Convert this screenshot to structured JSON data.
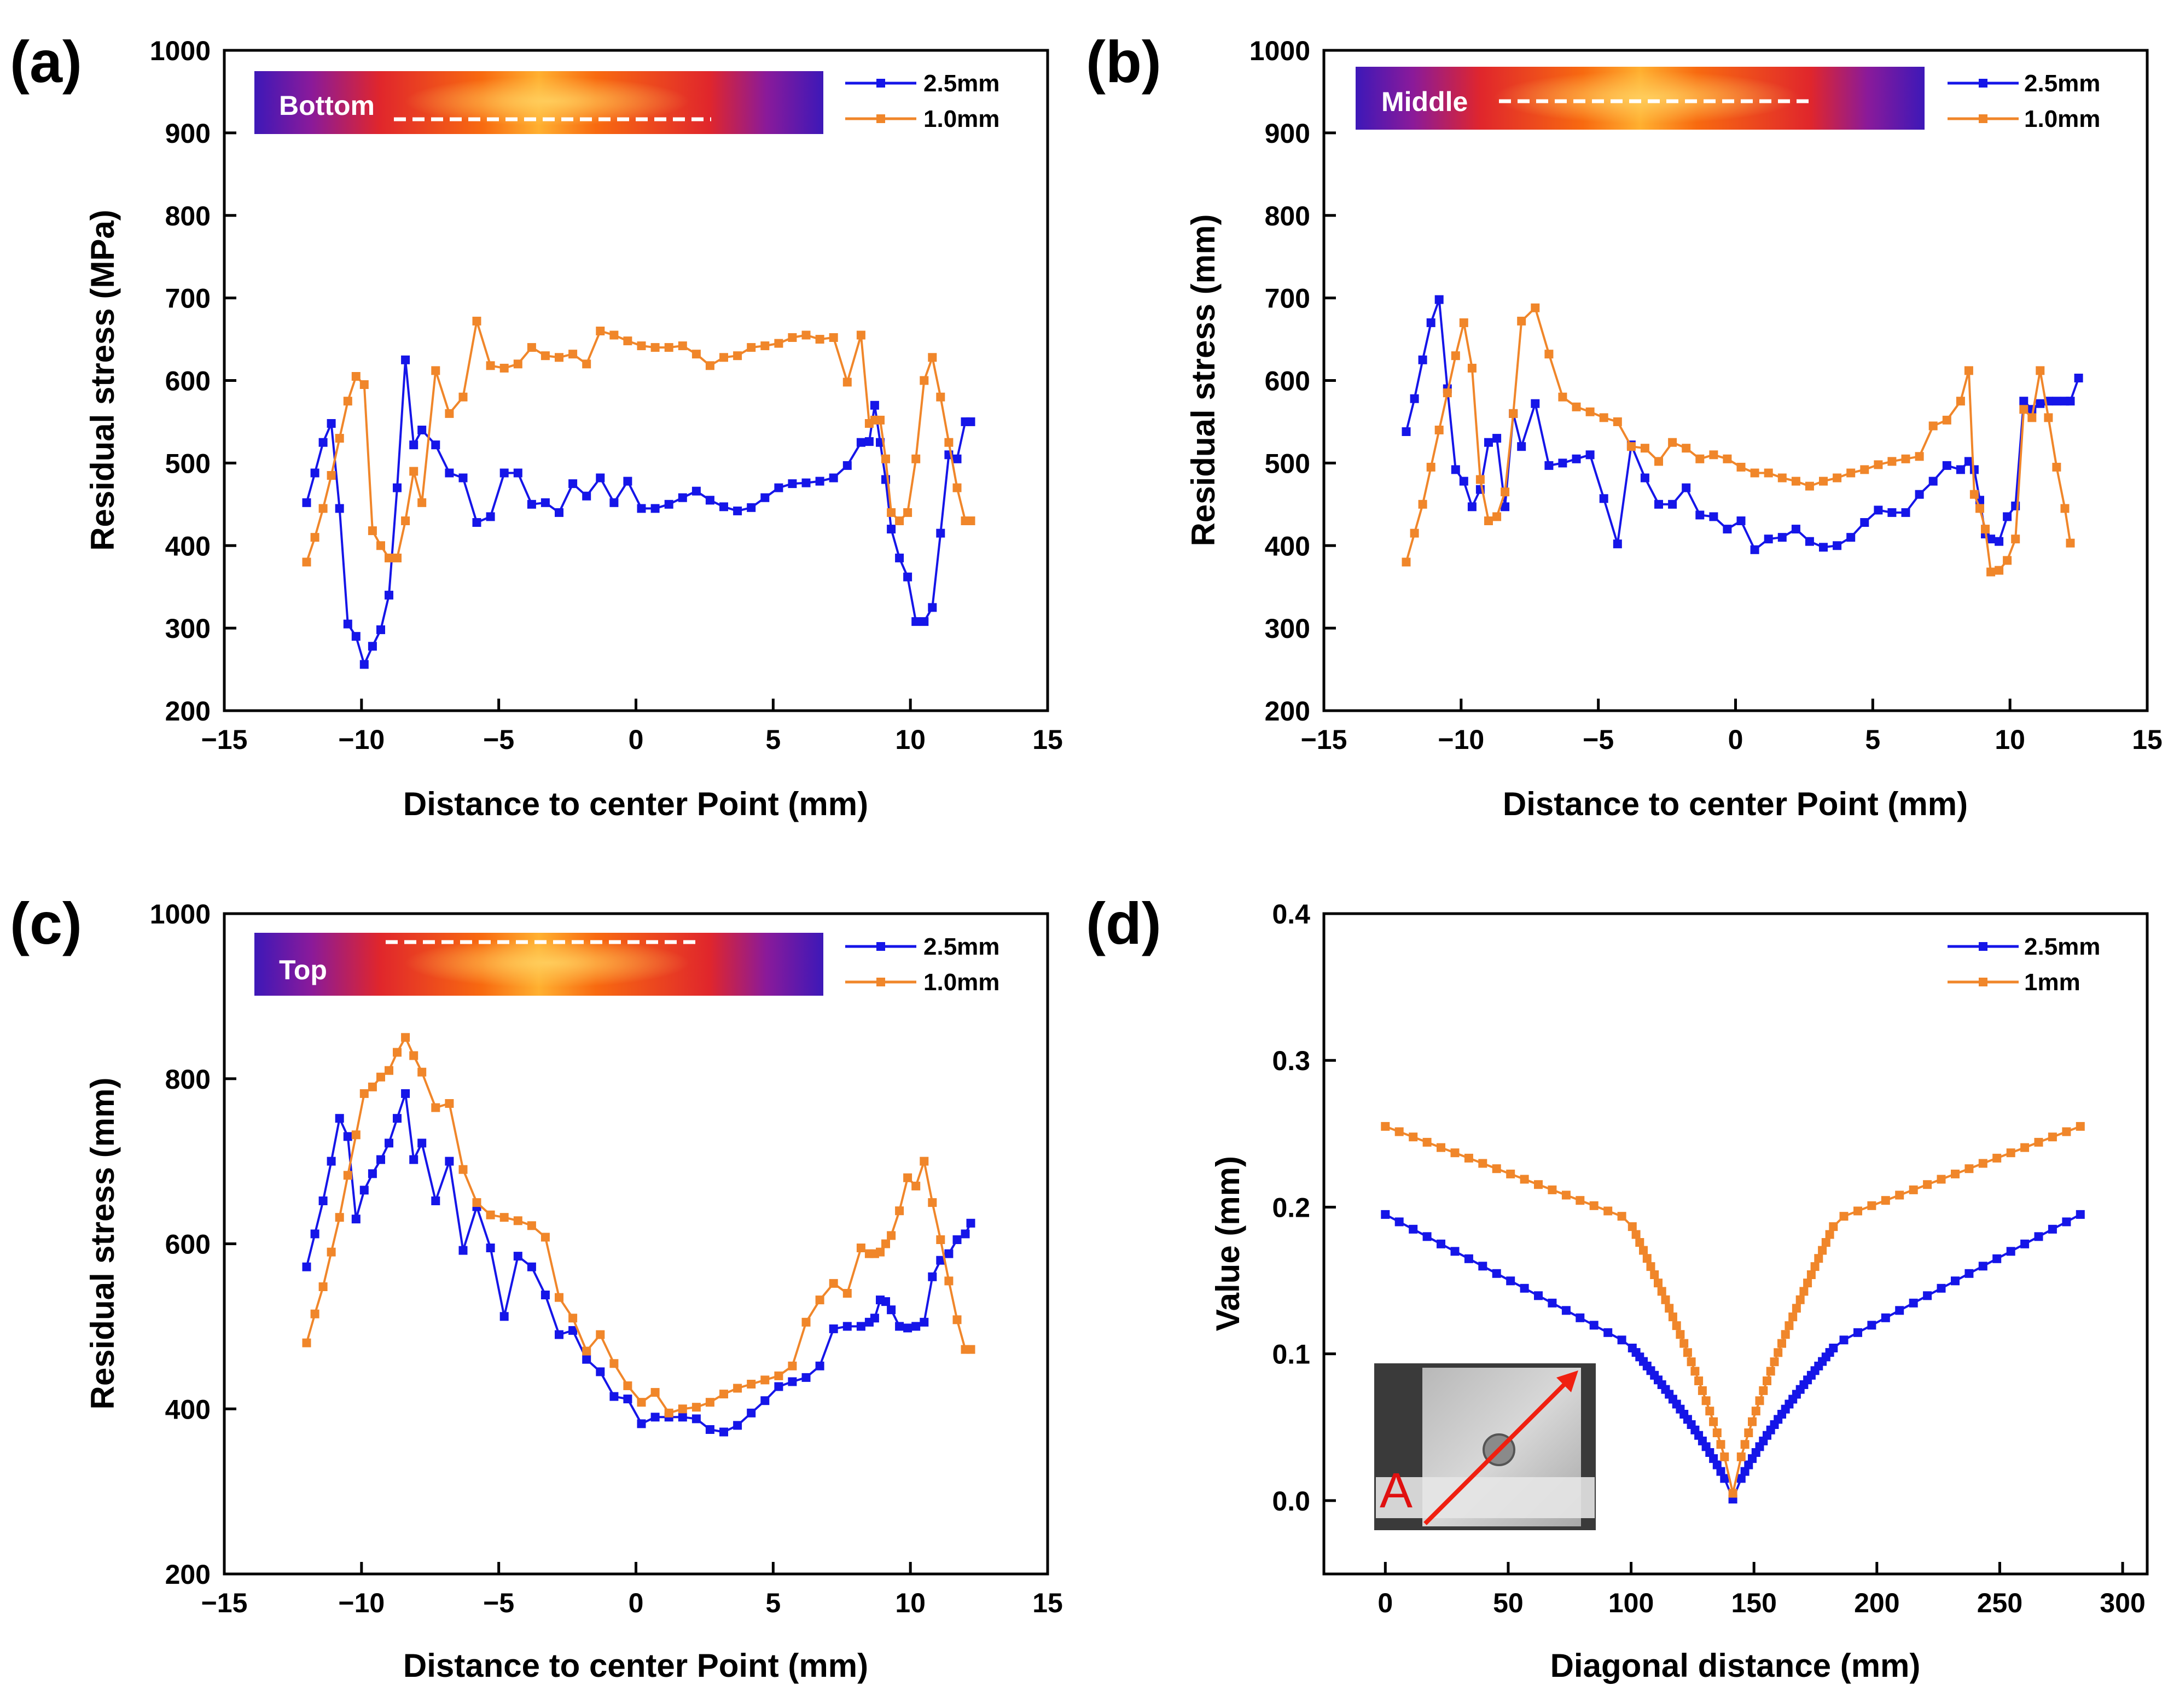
{
  "colors": {
    "series_blue": "#1515e8",
    "series_orange": "#f0862a"
  },
  "chart_data": [
    {
      "id": "a",
      "panel_label": "(a)",
      "type": "line",
      "xlabel": "Distance to center Point (mm)",
      "ylabel": "Residual stress (MPa)",
      "xlim": [
        -15,
        15
      ],
      "ylim": [
        200,
        1000
      ],
      "xticks": [
        -15,
        -10,
        -5,
        0,
        5,
        10,
        15
      ],
      "xtick_labels": [
        "−15",
        "−10",
        "−5",
        "0",
        "5",
        "10",
        "15"
      ],
      "yticks": [
        200,
        300,
        400,
        500,
        600,
        700,
        800,
        900,
        1000
      ],
      "ytick_labels": [
        "200",
        "300",
        "400",
        "500",
        "600",
        "700",
        "800",
        "900",
        "1000"
      ],
      "legend_position": "top-right",
      "grid": false,
      "inset_label": "Bottom",
      "series": [
        {
          "name": "2.5mm",
          "x": [
            -12.0,
            -11.7,
            -11.4,
            -11.1,
            -10.8,
            -10.5,
            -10.2,
            -9.9,
            -9.6,
            -9.3,
            -9.0,
            -8.7,
            -8.4,
            -8.1,
            -7.8,
            -7.3,
            -6.8,
            -6.3,
            -5.8,
            -5.3,
            -4.8,
            -4.3,
            -3.8,
            -3.3,
            -2.8,
            -2.3,
            -1.8,
            -1.3,
            -0.8,
            -0.3,
            0.2,
            0.7,
            1.2,
            1.7,
            2.2,
            2.7,
            3.2,
            3.7,
            4.2,
            4.7,
            5.2,
            5.7,
            6.2,
            6.7,
            7.2,
            7.7,
            8.2,
            8.5,
            8.7,
            8.9,
            9.1,
            9.3,
            9.6,
            9.9,
            10.2,
            10.5,
            10.8,
            11.1,
            11.4,
            11.7,
            12.0,
            12.2
          ],
          "y": [
            452,
            488,
            525,
            548,
            445,
            305,
            290,
            256,
            278,
            298,
            340,
            470,
            625,
            522,
            540,
            522,
            488,
            482,
            428,
            435,
            488,
            488,
            450,
            452,
            440,
            475,
            460,
            482,
            452,
            478,
            445,
            445,
            450,
            458,
            466,
            455,
            447,
            442,
            446,
            458,
            470,
            475,
            476,
            478,
            482,
            497,
            525,
            526,
            570,
            525,
            480,
            420,
            385,
            362,
            308,
            308,
            325,
            415,
            510,
            505,
            550,
            550
          ]
        },
        {
          "name": "1.0mm",
          "x": [
            -12.0,
            -11.7,
            -11.4,
            -11.1,
            -10.8,
            -10.5,
            -10.2,
            -9.9,
            -9.6,
            -9.3,
            -9.0,
            -8.7,
            -8.4,
            -8.1,
            -7.8,
            -7.3,
            -6.8,
            -6.3,
            -5.8,
            -5.3,
            -4.8,
            -4.3,
            -3.8,
            -3.3,
            -2.8,
            -2.3,
            -1.8,
            -1.3,
            -0.8,
            -0.3,
            0.2,
            0.7,
            1.2,
            1.7,
            2.2,
            2.7,
            3.2,
            3.7,
            4.2,
            4.7,
            5.2,
            5.7,
            6.2,
            6.7,
            7.2,
            7.7,
            8.2,
            8.5,
            8.7,
            8.9,
            9.1,
            9.3,
            9.6,
            9.9,
            10.2,
            10.5,
            10.8,
            11.1,
            11.4,
            11.7,
            12.0,
            12.2
          ],
          "y": [
            380,
            410,
            445,
            485,
            530,
            575,
            605,
            595,
            418,
            400,
            385,
            385,
            430,
            490,
            452,
            612,
            560,
            580,
            672,
            618,
            615,
            620,
            640,
            630,
            628,
            632,
            620,
            660,
            655,
            648,
            642,
            640,
            640,
            642,
            632,
            618,
            628,
            630,
            640,
            642,
            645,
            652,
            655,
            650,
            652,
            598,
            655,
            548,
            552,
            552,
            505,
            440,
            430,
            440,
            505,
            600,
            628,
            580,
            525,
            470,
            430,
            430
          ]
        }
      ]
    },
    {
      "id": "b",
      "panel_label": "(b)",
      "type": "line",
      "xlabel": "Distance to center Point (mm)",
      "ylabel": "Residual stress (mm)",
      "xlim": [
        -15,
        15
      ],
      "ylim": [
        200,
        1000
      ],
      "xticks": [
        -15,
        -10,
        -5,
        0,
        5,
        10,
        15
      ],
      "xtick_labels": [
        "−15",
        "−10",
        "−5",
        "0",
        "5",
        "10",
        "15"
      ],
      "yticks": [
        200,
        300,
        400,
        500,
        600,
        700,
        800,
        900,
        1000
      ],
      "ytick_labels": [
        "200",
        "300",
        "400",
        "500",
        "600",
        "700",
        "800",
        "900",
        "1000"
      ],
      "legend_position": "top-right",
      "grid": false,
      "inset_label": "Middle",
      "series": [
        {
          "name": "2.5mm",
          "x": [
            -12.0,
            -11.7,
            -11.4,
            -11.1,
            -10.8,
            -10.5,
            -10.2,
            -9.9,
            -9.6,
            -9.3,
            -9.0,
            -8.7,
            -8.4,
            -8.1,
            -7.8,
            -7.3,
            -6.8,
            -6.3,
            -5.8,
            -5.3,
            -4.8,
            -4.3,
            -3.8,
            -3.3,
            -2.8,
            -2.3,
            -1.8,
            -1.3,
            -0.8,
            -0.3,
            0.2,
            0.7,
            1.2,
            1.7,
            2.2,
            2.7,
            3.2,
            3.7,
            4.2,
            4.7,
            5.2,
            5.7,
            6.2,
            6.7,
            7.2,
            7.7,
            8.2,
            8.5,
            8.7,
            8.9,
            9.1,
            9.3,
            9.6,
            9.9,
            10.2,
            10.5,
            10.8,
            11.1,
            11.4,
            11.7,
            12.0,
            12.2,
            12.5
          ],
          "y": [
            538,
            578,
            625,
            670,
            698,
            590,
            492,
            478,
            447,
            468,
            525,
            530,
            447,
            560,
            520,
            572,
            497,
            500,
            505,
            510,
            457,
            402,
            522,
            482,
            450,
            450,
            470,
            437,
            435,
            420,
            430,
            395,
            408,
            410,
            420,
            405,
            398,
            400,
            410,
            428,
            443,
            440,
            440,
            462,
            478,
            497,
            492,
            502,
            492,
            455,
            414,
            408,
            405,
            435,
            448,
            575,
            565,
            572,
            575,
            575,
            575,
            575,
            603
          ]
        },
        {
          "name": "1.0mm",
          "x": [
            -12.0,
            -11.7,
            -11.4,
            -11.1,
            -10.8,
            -10.5,
            -10.2,
            -9.9,
            -9.6,
            -9.3,
            -9.0,
            -8.7,
            -8.4,
            -8.1,
            -7.8,
            -7.3,
            -6.8,
            -6.3,
            -5.8,
            -5.3,
            -4.8,
            -4.3,
            -3.8,
            -3.3,
            -2.8,
            -2.3,
            -1.8,
            -1.3,
            -0.8,
            -0.3,
            0.2,
            0.7,
            1.2,
            1.7,
            2.2,
            2.7,
            3.2,
            3.7,
            4.2,
            4.7,
            5.2,
            5.7,
            6.2,
            6.7,
            7.2,
            7.7,
            8.2,
            8.5,
            8.7,
            8.9,
            9.1,
            9.3,
            9.6,
            9.9,
            10.2,
            10.5,
            10.8,
            11.1,
            11.4,
            11.7,
            12.0,
            12.2
          ],
          "y": [
            380,
            415,
            450,
            495,
            540,
            585,
            630,
            670,
            615,
            480,
            430,
            435,
            465,
            560,
            672,
            688,
            632,
            580,
            568,
            562,
            555,
            550,
            520,
            518,
            502,
            525,
            518,
            505,
            510,
            505,
            495,
            488,
            488,
            482,
            478,
            472,
            478,
            482,
            488,
            492,
            498,
            502,
            505,
            508,
            545,
            552,
            575,
            612,
            462,
            445,
            420,
            368,
            370,
            382,
            408,
            565,
            555,
            612,
            555,
            495,
            445,
            403
          ]
        }
      ]
    },
    {
      "id": "c",
      "panel_label": "(c)",
      "type": "line",
      "xlabel": "Distance to center Point (mm)",
      "ylabel": "Residual stress (mm)",
      "xlim": [
        -15,
        15
      ],
      "ylim": [
        200,
        1000
      ],
      "xticks": [
        -15,
        -10,
        -5,
        0,
        5,
        10,
        15
      ],
      "xtick_labels": [
        "−15",
        "−10",
        "−5",
        "0",
        "5",
        "10",
        "15"
      ],
      "yticks": [
        200,
        400,
        600,
        800,
        1000
      ],
      "ytick_labels": [
        "200",
        "400",
        "600",
        "800",
        "1000"
      ],
      "legend_position": "top-right",
      "grid": false,
      "inset_label": "Top",
      "series": [
        {
          "name": "2.5mm",
          "x": [
            -12.0,
            -11.7,
            -11.4,
            -11.1,
            -10.8,
            -10.5,
            -10.2,
            -9.9,
            -9.6,
            -9.3,
            -9.0,
            -8.7,
            -8.4,
            -8.1,
            -7.8,
            -7.3,
            -6.8,
            -6.3,
            -5.8,
            -5.3,
            -4.8,
            -4.3,
            -3.8,
            -3.3,
            -2.8,
            -2.3,
            -1.8,
            -1.3,
            -0.8,
            -0.3,
            0.2,
            0.7,
            1.2,
            1.7,
            2.2,
            2.7,
            3.2,
            3.7,
            4.2,
            4.7,
            5.2,
            5.7,
            6.2,
            6.7,
            7.2,
            7.7,
            8.2,
            8.5,
            8.7,
            8.9,
            9.1,
            9.3,
            9.6,
            9.9,
            10.2,
            10.5,
            10.8,
            11.1,
            11.4,
            11.7,
            12.0,
            12.2
          ],
          "y": [
            572,
            612,
            652,
            700,
            752,
            730,
            630,
            665,
            685,
            702,
            722,
            752,
            782,
            702,
            722,
            652,
            700,
            592,
            645,
            595,
            512,
            585,
            572,
            538,
            490,
            495,
            460,
            445,
            415,
            412,
            382,
            390,
            390,
            390,
            388,
            375,
            372,
            380,
            395,
            410,
            427,
            433,
            438,
            452,
            497,
            500,
            500,
            505,
            510,
            532,
            530,
            520,
            500,
            498,
            500,
            505,
            560,
            580,
            588,
            605,
            612,
            625
          ]
        },
        {
          "name": "1.0mm",
          "x": [
            -12.0,
            -11.7,
            -11.4,
            -11.1,
            -10.8,
            -10.5,
            -10.2,
            -9.9,
            -9.6,
            -9.3,
            -9.0,
            -8.7,
            -8.4,
            -8.1,
            -7.8,
            -7.3,
            -6.8,
            -6.3,
            -5.8,
            -5.3,
            -4.8,
            -4.3,
            -3.8,
            -3.3,
            -2.8,
            -2.3,
            -1.8,
            -1.3,
            -0.8,
            -0.3,
            0.2,
            0.7,
            1.2,
            1.7,
            2.2,
            2.7,
            3.2,
            3.7,
            4.2,
            4.7,
            5.2,
            5.7,
            6.2,
            6.7,
            7.2,
            7.7,
            8.2,
            8.5,
            8.7,
            8.9,
            9.1,
            9.3,
            9.6,
            9.9,
            10.2,
            10.5,
            10.8,
            11.1,
            11.4,
            11.7,
            12.0,
            12.2
          ],
          "y": [
            480,
            515,
            548,
            590,
            632,
            683,
            732,
            782,
            790,
            802,
            810,
            832,
            850,
            828,
            808,
            765,
            770,
            690,
            650,
            635,
            632,
            628,
            622,
            608,
            535,
            510,
            470,
            490,
            455,
            428,
            408,
            420,
            395,
            400,
            402,
            408,
            418,
            425,
            430,
            435,
            440,
            452,
            505,
            532,
            552,
            540,
            595,
            588,
            588,
            590,
            600,
            610,
            640,
            680,
            670,
            700,
            650,
            605,
            555,
            508,
            472,
            472
          ]
        }
      ]
    },
    {
      "id": "d",
      "panel_label": "(d)",
      "type": "line",
      "xlabel": "Diagonal distance (mm)",
      "ylabel": "Value (mm)",
      "xlim": [
        -25,
        310
      ],
      "ylim": [
        -0.05,
        0.4
      ],
      "xticks": [
        0,
        50,
        100,
        150,
        200,
        250,
        300
      ],
      "xtick_labels": [
        "0",
        "50",
        "100",
        "150",
        "200",
        "250",
        "300"
      ],
      "yticks": [
        0.0,
        0.1,
        0.2,
        0.3,
        0.4
      ],
      "ytick_labels": [
        "0.0",
        "0.1",
        "0.2",
        "0.3",
        "0.4"
      ],
      "legend_position": "top-right",
      "grid": false,
      "inset_photo_label": "A",
      "series": [
        {
          "name": "2.5mm",
          "profile": "v-shape",
          "center_x": 141.4,
          "end_x": 282.8,
          "end_value": 0.195,
          "knee_offset": 42.4,
          "knee_value": 0.107,
          "bottom_value": 0.001
        },
        {
          "name": "1mm",
          "profile": "v-shape",
          "center_x": 141.4,
          "end_x": 282.8,
          "end_value": 0.255,
          "knee_offset": 42.4,
          "knee_value": 0.192,
          "bottom_value": 0.005
        }
      ]
    }
  ]
}
